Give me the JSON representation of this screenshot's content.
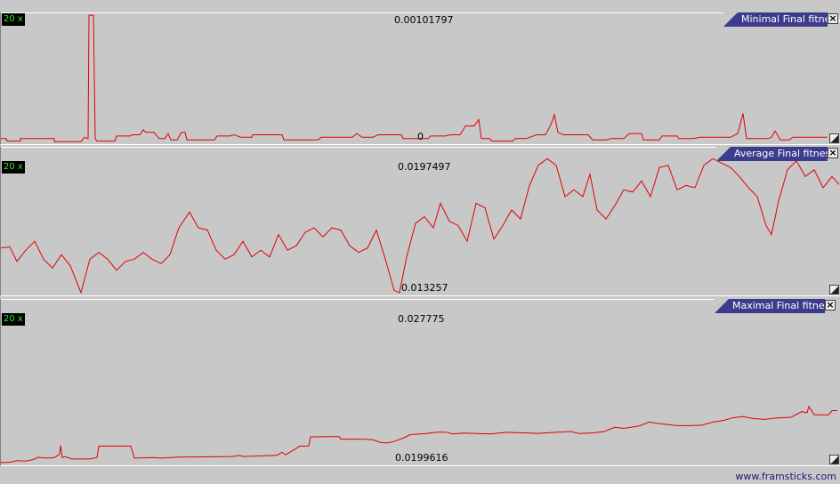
{
  "colors": {
    "line": "#e00000",
    "tab_bg": "#3c3c8c",
    "zoom_text": "#33e633",
    "background": "#c8c8c8"
  },
  "panels": [
    {
      "title": "Minimal Final fitness",
      "zoom": "20 x",
      "max_label": "0.00101797",
      "min_label": "0",
      "close_icon": "×",
      "ylim": [
        0,
        0.00101797
      ],
      "series_points": [
        [
          0,
          3e-05
        ],
        [
          6,
          3e-05
        ],
        [
          7,
          1e-05
        ],
        [
          10,
          1e-05
        ],
        [
          22,
          1e-05
        ],
        [
          22,
          3e-05
        ],
        [
          60,
          3e-05
        ],
        [
          60,
          5e-06
        ],
        [
          90,
          5e-06
        ],
        [
          94,
          4e-05
        ],
        [
          98,
          3e-05
        ],
        [
          99,
          0.00101
        ],
        [
          104,
          0.00101
        ],
        [
          106,
          3e-05
        ],
        [
          108,
          1e-05
        ],
        [
          128,
          1e-05
        ],
        [
          130,
          5e-05
        ],
        [
          145,
          5e-05
        ],
        [
          148,
          6e-05
        ],
        [
          156,
          6e-05
        ],
        [
          160,
          0.0001
        ],
        [
          163,
          8e-05
        ],
        [
          172,
          8e-05
        ],
        [
          178,
          3e-05
        ],
        [
          184,
          3e-05
        ],
        [
          188,
          7e-05
        ],
        [
          191,
          2e-05
        ],
        [
          198,
          2e-05
        ],
        [
          203,
          8e-05
        ],
        [
          207,
          8e-05
        ],
        [
          209,
          2e-05
        ],
        [
          240,
          2e-05
        ],
        [
          243,
          5e-05
        ],
        [
          258,
          5e-05
        ],
        [
          262,
          6e-05
        ],
        [
          270,
          4e-05
        ],
        [
          282,
          4e-05
        ],
        [
          283,
          6e-05
        ],
        [
          316,
          6e-05
        ],
        [
          318,
          2e-05
        ],
        [
          356,
          2e-05
        ],
        [
          360,
          4e-05
        ],
        [
          395,
          4e-05
        ],
        [
          400,
          7e-05
        ],
        [
          406,
          4e-05
        ],
        [
          418,
          4e-05
        ],
        [
          424,
          6e-05
        ],
        [
          450,
          6e-05
        ],
        [
          452,
          3e-05
        ],
        [
          470,
          3e-05
        ],
        [
          480,
          3e-05
        ],
        [
          483,
          5e-05
        ],
        [
          500,
          5e-05
        ],
        [
          505,
          6e-05
        ],
        [
          516,
          6e-05
        ],
        [
          522,
          0.00013
        ],
        [
          532,
          0.00013
        ],
        [
          537,
          0.00018
        ],
        [
          540,
          3e-05
        ],
        [
          549,
          3e-05
        ],
        [
          552,
          1e-05
        ],
        [
          575,
          1e-05
        ],
        [
          578,
          3e-05
        ],
        [
          590,
          3e-05
        ],
        [
          602,
          6e-05
        ],
        [
          612,
          6e-05
        ],
        [
          618,
          0.00014
        ],
        [
          622,
          0.00022
        ],
        [
          626,
          8e-05
        ],
        [
          632,
          6e-05
        ],
        [
          660,
          6e-05
        ],
        [
          665,
          2e-05
        ],
        [
          680,
          2e-05
        ],
        [
          686,
          3e-05
        ],
        [
          700,
          3e-05
        ],
        [
          706,
          7e-05
        ],
        [
          720,
          7e-05
        ],
        [
          722,
          2e-05
        ],
        [
          740,
          2e-05
        ],
        [
          743,
          5e-05
        ],
        [
          760,
          5e-05
        ],
        [
          762,
          3e-05
        ],
        [
          778,
          3e-05
        ],
        [
          786,
          4e-05
        ],
        [
          820,
          4e-05
        ],
        [
          828,
          7e-05
        ],
        [
          830,
          0.00012
        ],
        [
          834,
          0.00023
        ],
        [
          838,
          3e-05
        ],
        [
          862,
          3e-05
        ],
        [
          866,
          4e-05
        ],
        [
          870,
          9e-05
        ],
        [
          876,
          2e-05
        ],
        [
          886,
          2e-05
        ],
        [
          890,
          4e-05
        ],
        [
          929,
          4e-05
        ]
      ]
    },
    {
      "title": "Average Final fitness",
      "zoom": "20 x",
      "max_label": "0.0197497",
      "min_label": "0.013257",
      "close_icon": "×",
      "ylim": [
        0.013257,
        0.0197497
      ],
      "series_points": [
        [
          0,
          0.0153
        ],
        [
          10,
          0.01535
        ],
        [
          18,
          0.0147
        ],
        [
          28,
          0.0152
        ],
        [
          38,
          0.0156
        ],
        [
          48,
          0.0148
        ],
        [
          58,
          0.0144
        ],
        [
          68,
          0.015
        ],
        [
          78,
          0.0145
        ],
        [
          90,
          0.0133
        ],
        [
          100,
          0.0148
        ],
        [
          110,
          0.0151
        ],
        [
          120,
          0.0148
        ],
        [
          130,
          0.0143
        ],
        [
          140,
          0.0147
        ],
        [
          150,
          0.0148
        ],
        [
          160,
          0.0151
        ],
        [
          170,
          0.0148
        ],
        [
          180,
          0.0146
        ],
        [
          190,
          0.015
        ],
        [
          200,
          0.0162
        ],
        [
          212,
          0.0169
        ],
        [
          222,
          0.0162
        ],
        [
          232,
          0.0161
        ],
        [
          242,
          0.0152
        ],
        [
          252,
          0.0148
        ],
        [
          262,
          0.015
        ],
        [
          272,
          0.0156
        ],
        [
          282,
          0.0149
        ],
        [
          292,
          0.0152
        ],
        [
          302,
          0.0149
        ],
        [
          312,
          0.0159
        ],
        [
          322,
          0.0152
        ],
        [
          332,
          0.0154
        ],
        [
          342,
          0.016
        ],
        [
          352,
          0.0162
        ],
        [
          362,
          0.0158
        ],
        [
          372,
          0.0162
        ],
        [
          382,
          0.0161
        ],
        [
          392,
          0.0154
        ],
        [
          402,
          0.0151
        ],
        [
          412,
          0.0153
        ],
        [
          422,
          0.0161
        ],
        [
          432,
          0.0148
        ],
        [
          442,
          0.0134
        ],
        [
          448,
          0.0133
        ],
        [
          456,
          0.0149
        ],
        [
          466,
          0.0164
        ],
        [
          476,
          0.0167
        ],
        [
          486,
          0.0162
        ],
        [
          494,
          0.0173
        ],
        [
          504,
          0.0165
        ],
        [
          514,
          0.0163
        ],
        [
          524,
          0.0156
        ],
        [
          534,
          0.0173
        ],
        [
          544,
          0.0171
        ],
        [
          554,
          0.0157
        ],
        [
          564,
          0.0163
        ],
        [
          574,
          0.017
        ],
        [
          584,
          0.0166
        ],
        [
          594,
          0.0181
        ],
        [
          604,
          0.019
        ],
        [
          614,
          0.0193
        ],
        [
          624,
          0.019
        ],
        [
          634,
          0.0176
        ],
        [
          644,
          0.0179
        ],
        [
          654,
          0.0176
        ],
        [
          662,
          0.0186
        ],
        [
          670,
          0.017
        ],
        [
          680,
          0.0166
        ],
        [
          690,
          0.0172
        ],
        [
          700,
          0.0179
        ],
        [
          710,
          0.0178
        ],
        [
          720,
          0.0183
        ],
        [
          730,
          0.0176
        ],
        [
          740,
          0.0189
        ],
        [
          750,
          0.019
        ],
        [
          760,
          0.0179
        ],
        [
          770,
          0.0181
        ],
        [
          780,
          0.018
        ],
        [
          790,
          0.019
        ],
        [
          800,
          0.0193
        ],
        [
          810,
          0.0191
        ],
        [
          820,
          0.0189
        ],
        [
          830,
          0.0185
        ],
        [
          840,
          0.018
        ],
        [
          850,
          0.0176
        ],
        [
          860,
          0.0163
        ],
        [
          866,
          0.0159
        ],
        [
          874,
          0.0174
        ],
        [
          884,
          0.0188
        ],
        [
          894,
          0.0192
        ],
        [
          904,
          0.0185
        ],
        [
          914,
          0.0188
        ],
        [
          924,
          0.018
        ],
        [
          934,
          0.0185
        ],
        [
          943,
          0.0181
        ]
      ]
    },
    {
      "title": "Maximal Final fitness",
      "zoom": "20 x",
      "max_label": "0.027775",
      "min_label": "0.0199616",
      "close_icon": "×",
      "ylim": [
        0.0199616,
        0.027775
      ],
      "series_points": [
        [
          0,
          0.02001
        ],
        [
          10,
          0.02002
        ],
        [
          18,
          0.0201
        ],
        [
          28,
          0.02008
        ],
        [
          36,
          0.02015
        ],
        [
          42,
          0.02026
        ],
        [
          52,
          0.02022
        ],
        [
          60,
          0.02025
        ],
        [
          66,
          0.0204
        ],
        [
          67,
          0.02083
        ],
        [
          69,
          0.02025
        ],
        [
          72,
          0.0203
        ],
        [
          80,
          0.02018
        ],
        [
          100,
          0.02018
        ],
        [
          108,
          0.02025
        ],
        [
          110,
          0.0208
        ],
        [
          146,
          0.0208
        ],
        [
          150,
          0.02022
        ],
        [
          170,
          0.02025
        ],
        [
          180,
          0.02022
        ],
        [
          200,
          0.02027
        ],
        [
          230,
          0.02028
        ],
        [
          260,
          0.0203
        ],
        [
          268,
          0.02035
        ],
        [
          272,
          0.0203
        ],
        [
          310,
          0.02036
        ],
        [
          316,
          0.0205
        ],
        [
          320,
          0.02038
        ],
        [
          336,
          0.0208
        ],
        [
          346,
          0.0208
        ],
        [
          348,
          0.02124
        ],
        [
          366,
          0.02125
        ],
        [
          380,
          0.02125
        ],
        [
          382,
          0.02113
        ],
        [
          408,
          0.02113
        ],
        [
          418,
          0.0211
        ],
        [
          426,
          0.02098
        ],
        [
          434,
          0.02095
        ],
        [
          442,
          0.02102
        ],
        [
          452,
          0.02118
        ],
        [
          460,
          0.02135
        ],
        [
          478,
          0.0214
        ],
        [
          490,
          0.02147
        ],
        [
          500,
          0.02147
        ],
        [
          508,
          0.02138
        ],
        [
          520,
          0.02142
        ],
        [
          534,
          0.0214
        ],
        [
          550,
          0.02138
        ],
        [
          568,
          0.02146
        ],
        [
          590,
          0.02143
        ],
        [
          604,
          0.02141
        ],
        [
          620,
          0.02145
        ],
        [
          640,
          0.0215
        ],
        [
          650,
          0.0214
        ],
        [
          665,
          0.02143
        ],
        [
          678,
          0.0215
        ],
        [
          690,
          0.0217
        ],
        [
          700,
          0.02165
        ],
        [
          718,
          0.02177
        ],
        [
          728,
          0.02195
        ],
        [
          740,
          0.02188
        ],
        [
          760,
          0.02178
        ],
        [
          774,
          0.02178
        ],
        [
          788,
          0.0218
        ],
        [
          800,
          0.02195
        ],
        [
          812,
          0.02203
        ],
        [
          822,
          0.02215
        ],
        [
          834,
          0.02222
        ],
        [
          844,
          0.02213
        ],
        [
          858,
          0.02208
        ],
        [
          872,
          0.02215
        ],
        [
          888,
          0.02218
        ],
        [
          900,
          0.02245
        ],
        [
          906,
          0.0224
        ],
        [
          908,
          0.0227
        ],
        [
          914,
          0.0223
        ],
        [
          930,
          0.0223
        ],
        [
          934,
          0.0225
        ],
        [
          940,
          0.0225
        ]
      ]
    }
  ],
  "footer": "www.framsticks.com"
}
